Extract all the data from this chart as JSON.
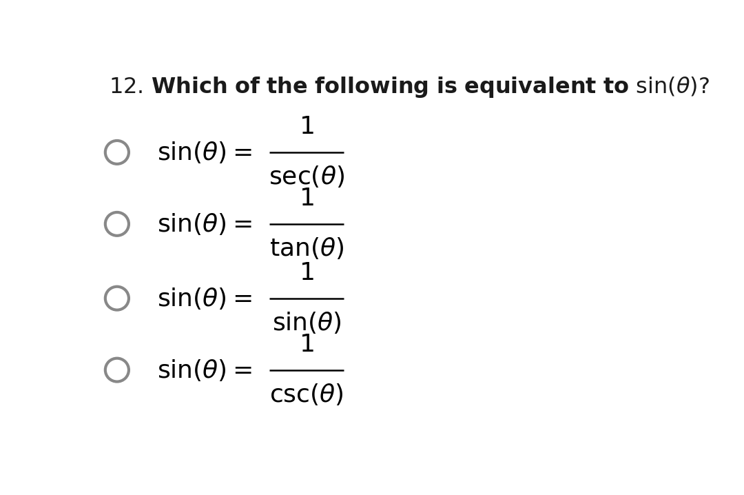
{
  "background_color": "#ffffff",
  "fig_width": 10.8,
  "fig_height": 7.18,
  "title_fontsize": 23,
  "option_fontsize": 26,
  "circle_color": "#888888",
  "options": [
    {
      "denominator": "\\\\sec(\\\\theta)"
    },
    {
      "denominator": "\\\\tan(\\\\theta)"
    },
    {
      "denominator": "\\\\sin(\\\\theta)"
    },
    {
      "denominator": "\\\\csc(\\\\theta)"
    }
  ]
}
